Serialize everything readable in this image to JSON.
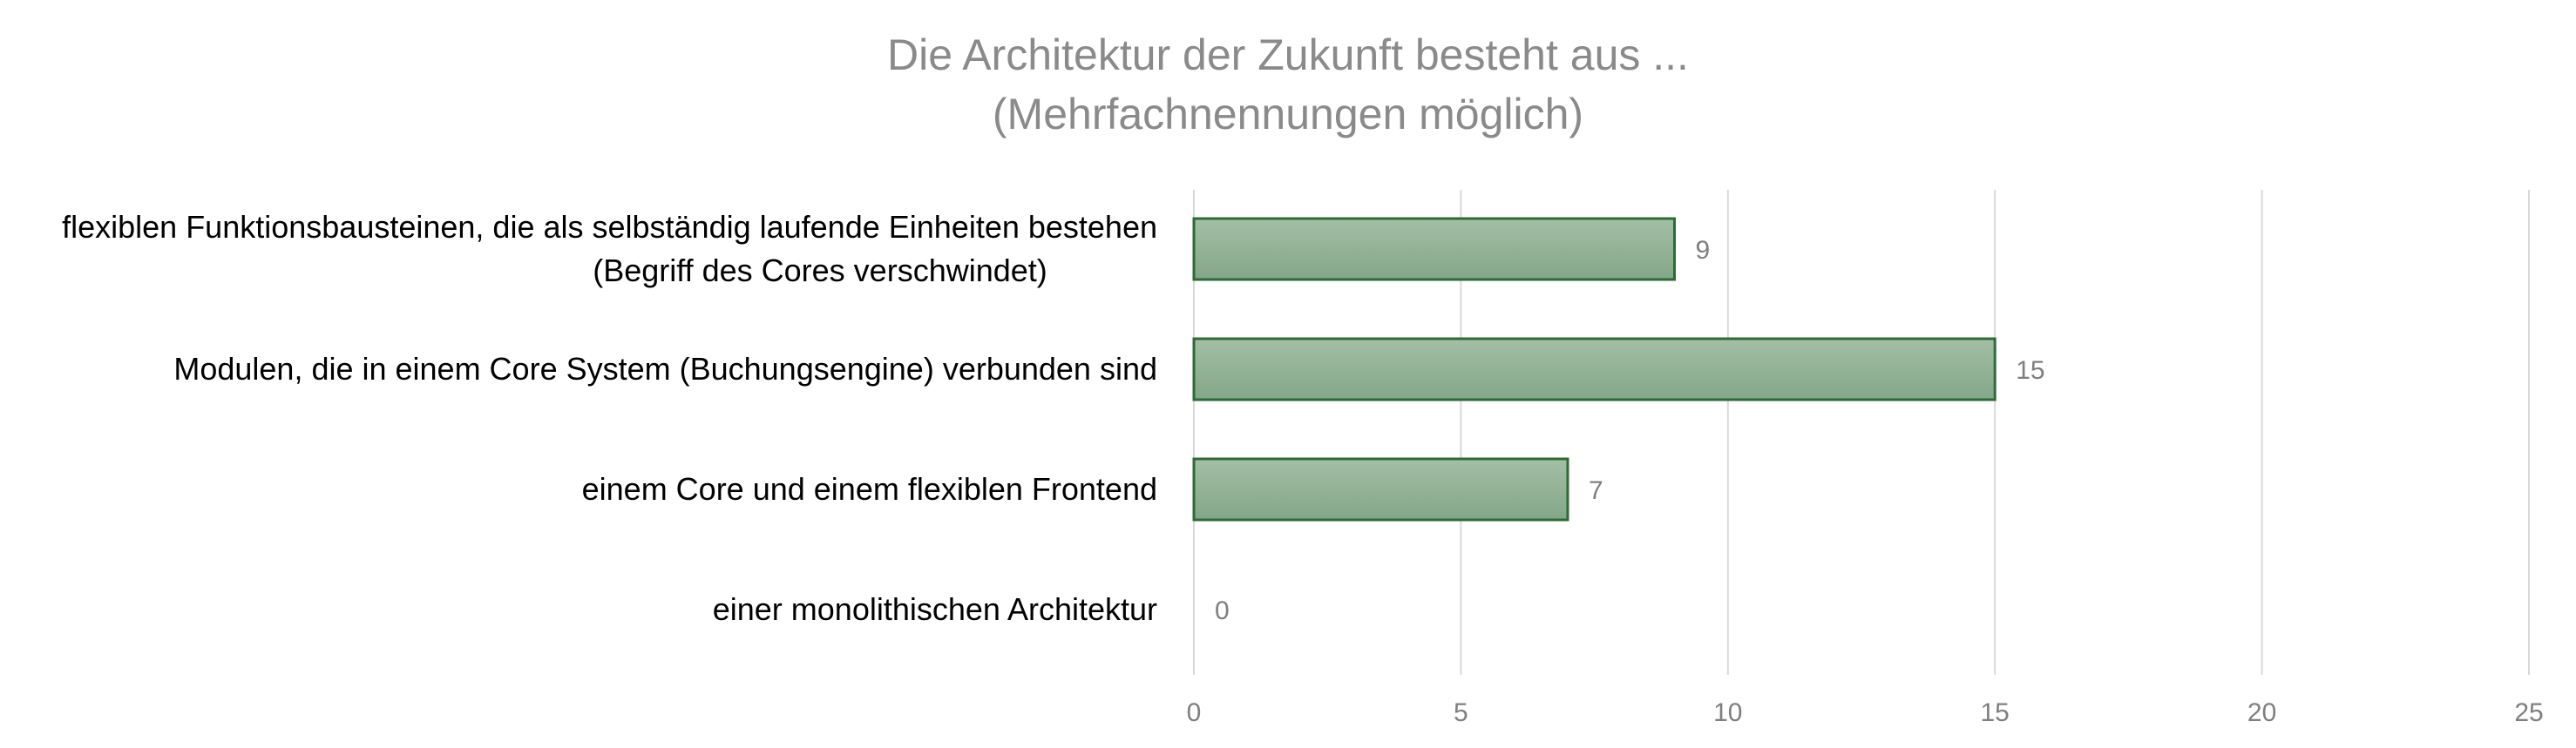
{
  "chart_data": {
    "type": "bar",
    "orientation": "horizontal",
    "title": "Die Architektur der Zukunft besteht aus ...",
    "subtitle": "(Mehrfachnennungen möglich)",
    "categories": [
      "flexiblen Funktionsbausteinen, die als selbständig laufende Einheiten bestehen (Begriff des Cores verschwindet)",
      "Modulen, die in einem Core System (Buchungsengine) verbunden sind",
      "einem Core und einem flexiblen Frontend",
      "einer monolithischen Architektur"
    ],
    "category_lines": [
      [
        "flexiblen Funktionsbausteinen, die als selbständig laufende Einheiten bestehen",
        "(Begriff des Cores verschwindet)"
      ],
      [
        "Modulen, die in einem Core System (Buchungsengine) verbunden sind"
      ],
      [
        "einem Core und einem flexiblen Frontend"
      ],
      [
        "einer monolithischen Architektur"
      ]
    ],
    "values": [
      9,
      15,
      7,
      0
    ],
    "data_labels": [
      "9",
      "15",
      "7",
      "0"
    ],
    "xlim": [
      0,
      25
    ],
    "xticks": [
      0,
      5,
      10,
      15,
      20,
      25
    ],
    "xtick_labels": [
      "0",
      "5",
      "10",
      "15",
      "20",
      "25"
    ],
    "xlabel": "",
    "ylabel": "",
    "grid": "vertical",
    "legend": "none",
    "colors": {
      "bar_fill_top": "#a3bfa5",
      "bar_fill_bottom": "#83a688",
      "bar_stroke": "#2e6b34",
      "grid": "#d9d9d9",
      "title": "#8a8a8a",
      "tick_label": "#7f7f7f",
      "category_label": "#000000"
    }
  }
}
